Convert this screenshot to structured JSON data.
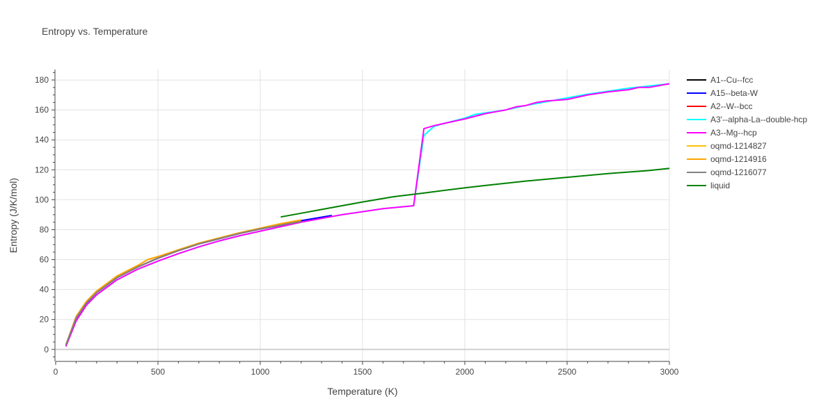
{
  "chart_data": {
    "type": "line",
    "title": "Entropy vs. Temperature",
    "xlabel": "Temperature (K)",
    "ylabel": "Entropy (J/K/mol)",
    "xlim": [
      0,
      3000
    ],
    "ylim": [
      -8,
      187
    ],
    "xticks": [
      0,
      500,
      1000,
      1500,
      2000,
      2500,
      3000
    ],
    "yticks": [
      0,
      20,
      40,
      60,
      80,
      100,
      120,
      140,
      160,
      180
    ],
    "grid": true,
    "legend_position": "right",
    "series": [
      {
        "name": "A1--Cu--fcc",
        "color": "#000000",
        "x": [
          50,
          100,
          150,
          200,
          300,
          400,
          500,
          600,
          700,
          800,
          900,
          1000,
          1100,
          1200
        ],
        "y": [
          3,
          21,
          31,
          38,
          48,
          55,
          61,
          66,
          70.5,
          74,
          77.5,
          80.5,
          83,
          85.5
        ]
      },
      {
        "name": "A15--beta-W",
        "color": "#0000ff",
        "x": [
          50,
          100,
          150,
          200,
          300,
          400,
          500,
          600,
          700,
          800,
          900,
          1000,
          1100,
          1200,
          1350
        ],
        "y": [
          3,
          21,
          31,
          38,
          48,
          55,
          61,
          66,
          70.5,
          74,
          77.5,
          80.5,
          83,
          86,
          89.5
        ]
      },
      {
        "name": "A2--W--bcc",
        "color": "#ff0000",
        "x": [
          50,
          100,
          150,
          200,
          300,
          400,
          500,
          600,
          700,
          800,
          900,
          1000,
          1100,
          1200
        ],
        "y": [
          3,
          21,
          31,
          38,
          48,
          55,
          61,
          66,
          70.5,
          74,
          77.5,
          80.5,
          83,
          85.5
        ]
      },
      {
        "name": "A3'--alpha-La--double-hcp",
        "color": "#00ffff",
        "x": [
          50,
          100,
          150,
          200,
          300,
          400,
          500,
          600,
          700,
          800,
          900,
          1000,
          1100,
          1200,
          1300,
          1400,
          1500,
          1600,
          1750,
          1800,
          1850,
          1900,
          2000,
          2050,
          2100,
          2200,
          2300,
          2400,
          2500,
          2600,
          2700,
          2800,
          2900,
          3000
        ],
        "y": [
          2,
          19,
          29.5,
          36.5,
          46.5,
          53.5,
          59,
          64,
          68.5,
          72.5,
          76,
          79,
          82,
          85,
          87.5,
          90,
          92,
          94,
          96,
          143,
          149,
          151,
          154.5,
          157,
          158,
          160,
          163,
          165.5,
          168,
          170.5,
          172.5,
          174.5,
          176,
          177.5
        ]
      },
      {
        "name": "A3--Mg--hcp",
        "color": "#ff00ff",
        "x": [
          50,
          100,
          150,
          200,
          300,
          400,
          500,
          600,
          700,
          800,
          900,
          1000,
          1100,
          1200,
          1300,
          1400,
          1500,
          1600,
          1750,
          1800,
          1850,
          1900,
          2000,
          2100,
          2200,
          2250,
          2300,
          2350,
          2400,
          2500,
          2600,
          2700,
          2800,
          2850,
          2900,
          3000
        ],
        "y": [
          2,
          19,
          29.5,
          36.5,
          46.5,
          53.5,
          59,
          64,
          68.5,
          72.5,
          76,
          79,
          82,
          85,
          87.5,
          90,
          92,
          94,
          96,
          147.5,
          149.5,
          151,
          154,
          157.5,
          160,
          162,
          163,
          165,
          166,
          167,
          170,
          172,
          173.5,
          175,
          175,
          177.5
        ]
      },
      {
        "name": "oqmd-1214827",
        "color": "#ffc000",
        "x": [
          50,
          100,
          150,
          200,
          300,
          400,
          450,
          500,
          600,
          700,
          800,
          900,
          1000,
          1100,
          1200
        ],
        "y": [
          3,
          22,
          32,
          39,
          49,
          56,
          60,
          62,
          66.5,
          71,
          74.5,
          78,
          81,
          84,
          86.5
        ]
      },
      {
        "name": "oqmd-1214916",
        "color": "#ffa500",
        "x": [
          50,
          100,
          150,
          200,
          300,
          400,
          450,
          500,
          600,
          700,
          800,
          900,
          1000,
          1100,
          1200
        ],
        "y": [
          3,
          22,
          32,
          39,
          49,
          56,
          60,
          62,
          66.5,
          71,
          74.5,
          78,
          81,
          84,
          86.5
        ]
      },
      {
        "name": "oqmd-1216077",
        "color": "#808080",
        "x": [
          50,
          100,
          150,
          200,
          300,
          400,
          500,
          600,
          700,
          800,
          900,
          1000,
          1100,
          1200
        ],
        "y": [
          3,
          21,
          31,
          38,
          48,
          55,
          61,
          66,
          70.5,
          74,
          77.5,
          80.5,
          83,
          85.5
        ]
      },
      {
        "name": "liquid",
        "color": "#008000",
        "x": [
          1100,
          1200,
          1300,
          1400,
          1500,
          1650,
          1800,
          2000,
          2100,
          2300,
          2500,
          2700,
          2900,
          3000
        ],
        "y": [
          88.5,
          91,
          93.5,
          96,
          98.5,
          102,
          104.5,
          108,
          109.5,
          112.5,
          115,
          117.5,
          119.5,
          121
        ]
      }
    ]
  }
}
